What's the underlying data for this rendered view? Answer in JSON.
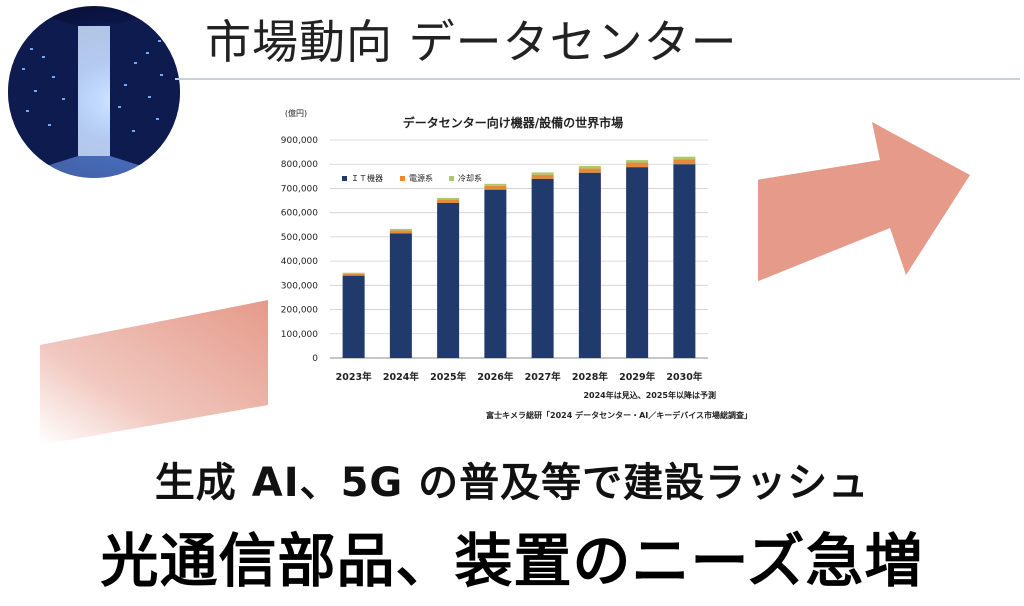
{
  "title": "市場動向 データセンター",
  "subtitle": "生成 AI、5G の普及等で建設ラッシュ",
  "headline": "光通信部品、装置のニーズ急増",
  "colors": {
    "arrow": "#e59a8a",
    "it": "#1f3a6b",
    "power": "#e6893a",
    "cooling": "#a9c96a",
    "rule": "#c9cfd8"
  },
  "icons": {
    "photo": "datacenter-photo-icon",
    "arrow": "upward-arrow-icon"
  },
  "chart_data": {
    "type": "bar",
    "stacked": true,
    "title": "データセンター向け機器/設備の世界市場",
    "unit": "(億円)",
    "categories": [
      "2023年",
      "2024年",
      "2025年",
      "2026年",
      "2027年",
      "2028年",
      "2029年",
      "2030年"
    ],
    "series": [
      {
        "name": "ＩＴ機器",
        "color": "#1f3a6b",
        "values": [
          340000,
          515000,
          640000,
          695000,
          740000,
          765000,
          788000,
          800000
        ]
      },
      {
        "name": "電源系",
        "color": "#e6893a",
        "values": [
          8000,
          12000,
          14000,
          16000,
          17000,
          18000,
          19000,
          20000
        ]
      },
      {
        "name": "冷却系",
        "color": "#a9c96a",
        "values": [
          4000,
          6000,
          7000,
          8000,
          9000,
          9500,
          10000,
          11000
        ]
      }
    ],
    "yticks": [
      "0",
      "100,000",
      "200,000",
      "300,000",
      "400,000",
      "500,000",
      "600,000",
      "700,000",
      "800,000",
      "900,000"
    ],
    "ylim": [
      0,
      900000
    ],
    "note": "2024年は見込、2025年以降は予測",
    "source": "富士キメラ総研「2024 データセンター・AI／キーデバイス市場総調査」",
    "legend": "top-left",
    "grid": true
  }
}
